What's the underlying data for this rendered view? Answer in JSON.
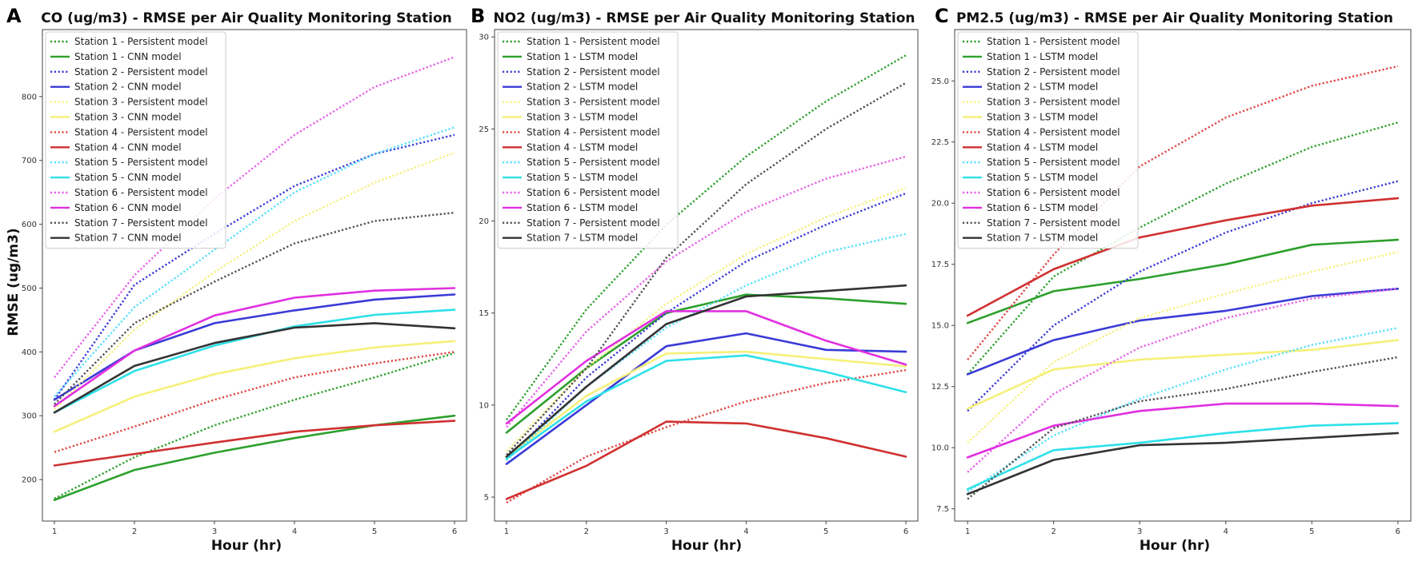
{
  "y_axis_label": "RMSE (ug/m3)",
  "chart_data": [
    {
      "panel": "A",
      "type": "line",
      "title": "CO (ug/m3) - RMSE per Air Quality Monitoring Station",
      "xlabel": "Hour (hr)",
      "ylabel": "RMSE (ug/m3)",
      "x": [
        1,
        2,
        3,
        4,
        5,
        6
      ],
      "xlim": [
        0.85,
        6.15
      ],
      "ylim": [
        135,
        905
      ],
      "yticks": [
        200,
        300,
        400,
        500,
        600,
        700,
        800
      ],
      "ytick_labels": [
        "200",
        "300",
        "400",
        "500",
        "600",
        "700",
        "800"
      ],
      "legend_position": "upper-left",
      "series": [
        {
          "name": "Station 1 - Persistent model",
          "color": "#2ca02c",
          "style": "dotted",
          "values": [
            170,
            235,
            285,
            325,
            360,
            398
          ]
        },
        {
          "name": "Station 1 - CNN model",
          "color": "#2ca02c",
          "style": "solid",
          "values": [
            168,
            215,
            242,
            265,
            285,
            300
          ]
        },
        {
          "name": "Station 2 - Persistent model",
          "color": "#3a3ad6",
          "style": "dotted",
          "values": [
            325,
            505,
            585,
            660,
            710,
            740
          ]
        },
        {
          "name": "Station 2 - CNN model",
          "color": "#3a3ad6",
          "style": "solid",
          "values": [
            325,
            402,
            445,
            465,
            482,
            490
          ]
        },
        {
          "name": "Station 3 - Persistent model",
          "color": "#f5f07a",
          "style": "dotted",
          "values": [
            310,
            435,
            525,
            605,
            665,
            712
          ]
        },
        {
          "name": "Station 3 - CNN model",
          "color": "#f5f07a",
          "style": "solid",
          "values": [
            275,
            330,
            365,
            390,
            407,
            417
          ]
        },
        {
          "name": "Station 4 - Persistent model",
          "color": "#e04545",
          "style": "dotted",
          "values": [
            243,
            283,
            325,
            360,
            382,
            400
          ]
        },
        {
          "name": "Station 4 - CNN model",
          "color": "#d03030",
          "style": "solid",
          "values": [
            222,
            240,
            258,
            275,
            285,
            292
          ]
        },
        {
          "name": "Station 5 - Persistent model",
          "color": "#55e0ff",
          "style": "dotted",
          "values": [
            330,
            470,
            560,
            650,
            710,
            752
          ]
        },
        {
          "name": "Station 5 - CNN model",
          "color": "#2ee0e8",
          "style": "solid",
          "values": [
            305,
            370,
            410,
            440,
            458,
            466
          ]
        },
        {
          "name": "Station 6 - Persistent model",
          "color": "#e860e8",
          "style": "dotted",
          "values": [
            360,
            520,
            640,
            740,
            815,
            862
          ]
        },
        {
          "name": "Station 6 - CNN model",
          "color": "#e030e0",
          "style": "solid",
          "values": [
            315,
            402,
            457,
            485,
            496,
            500
          ]
        },
        {
          "name": "Station 7 - Persistent model",
          "color": "#505050",
          "style": "dotted",
          "values": [
            318,
            445,
            510,
            570,
            605,
            618
          ]
        },
        {
          "name": "Station 7 - CNN model",
          "color": "#333333",
          "style": "solid",
          "values": [
            305,
            378,
            414,
            438,
            445,
            437
          ]
        }
      ]
    },
    {
      "panel": "B",
      "type": "line",
      "title": "NO2 (ug/m3) - RMSE per Air Quality Monitoring Station",
      "xlabel": "Hour (hr)",
      "ylabel": "RMSE (ug/m3)",
      "x": [
        1,
        2,
        3,
        4,
        5,
        6
      ],
      "xlim": [
        0.85,
        6.15
      ],
      "ylim": [
        3.7,
        30.4
      ],
      "yticks": [
        5,
        10,
        15,
        20,
        25,
        30
      ],
      "ytick_labels": [
        "5",
        "10",
        "15",
        "20",
        "25",
        "30"
      ],
      "legend_position": "upper-left",
      "series": [
        {
          "name": "Station 1 - Persistent model",
          "color": "#2ca02c",
          "style": "dotted",
          "values": [
            9.2,
            15.2,
            19.8,
            23.5,
            26.5,
            29.0
          ]
        },
        {
          "name": "Station 1 - LSTM model",
          "color": "#2ca02c",
          "style": "solid",
          "values": [
            8.5,
            12.0,
            15.0,
            16.0,
            15.8,
            15.5
          ]
        },
        {
          "name": "Station 2 - Persistent model",
          "color": "#3a3ad6",
          "style": "dotted",
          "values": [
            7.0,
            11.5,
            15.0,
            17.8,
            19.8,
            21.5
          ]
        },
        {
          "name": "Station 2 - LSTM model",
          "color": "#3a3ad6",
          "style": "solid",
          "values": [
            6.8,
            10.0,
            13.2,
            13.9,
            13.0,
            12.9
          ]
        },
        {
          "name": "Station 3 - Persistent model",
          "color": "#f5f07a",
          "style": "dotted",
          "values": [
            7.5,
            12.0,
            15.5,
            18.2,
            20.2,
            21.8
          ]
        },
        {
          "name": "Station 3 - LSTM model",
          "color": "#f5f07a",
          "style": "solid",
          "values": [
            7.2,
            10.5,
            12.8,
            12.9,
            12.5,
            12.1
          ]
        },
        {
          "name": "Station 4 - Persistent model",
          "color": "#e04545",
          "style": "dotted",
          "values": [
            4.7,
            7.2,
            8.8,
            10.2,
            11.2,
            11.9
          ]
        },
        {
          "name": "Station 4 - LSTM model",
          "color": "#d03030",
          "style": "solid",
          "values": [
            4.9,
            6.7,
            9.1,
            9.0,
            8.2,
            7.2
          ]
        },
        {
          "name": "Station 5 - Persistent model",
          "color": "#55e0ff",
          "style": "dotted",
          "values": [
            7.0,
            11.0,
            14.2,
            16.5,
            18.3,
            19.3
          ]
        },
        {
          "name": "Station 5 - LSTM model",
          "color": "#2ee0e8",
          "style": "solid",
          "values": [
            7.1,
            10.2,
            12.4,
            12.7,
            11.8,
            10.7
          ]
        },
        {
          "name": "Station 6 - Persistent model",
          "color": "#e860e8",
          "style": "dotted",
          "values": [
            8.8,
            14.0,
            17.8,
            20.5,
            22.3,
            23.5
          ]
        },
        {
          "name": "Station 6 - LSTM model",
          "color": "#e030e0",
          "style": "solid",
          "values": [
            9.0,
            12.4,
            15.1,
            15.1,
            13.5,
            12.2
          ]
        },
        {
          "name": "Station 7 - Persistent model",
          "color": "#505050",
          "style": "dotted",
          "values": [
            7.3,
            12.0,
            18.0,
            22.0,
            25.0,
            27.5
          ]
        },
        {
          "name": "Station 7 - LSTM model",
          "color": "#333333",
          "style": "solid",
          "values": [
            7.2,
            11.0,
            14.4,
            15.9,
            16.2,
            16.5
          ]
        }
      ]
    },
    {
      "panel": "C",
      "type": "line",
      "title": "PM2.5 (ug/m3) - RMSE per Air Quality Monitoring Station",
      "xlabel": "Hour (hr)",
      "ylabel": "RMSE (ug/m3)",
      "x": [
        1,
        2,
        3,
        4,
        5,
        6
      ],
      "xlim": [
        0.85,
        6.15
      ],
      "ylim": [
        7.0,
        27.1
      ],
      "yticks": [
        7.5,
        10.0,
        12.5,
        15.0,
        17.5,
        20.0,
        22.5,
        25.0
      ],
      "ytick_labels": [
        "7.5",
        "10.0",
        "12.5",
        "15.0",
        "17.5",
        "20.0",
        "22.5",
        "25.0"
      ],
      "legend_position": "upper-left",
      "series": [
        {
          "name": "Station 1 - Persistent model",
          "color": "#2ca02c",
          "style": "dotted",
          "values": [
            13.0,
            17.0,
            19.0,
            20.8,
            22.3,
            23.3
          ]
        },
        {
          "name": "Station 1 - LSTM model",
          "color": "#2ca02c",
          "style": "solid",
          "values": [
            15.1,
            16.4,
            16.9,
            17.5,
            18.3,
            18.5
          ]
        },
        {
          "name": "Station 2 - Persistent model",
          "color": "#3a3ad6",
          "style": "dotted",
          "values": [
            11.5,
            15.0,
            17.2,
            18.8,
            20.0,
            20.9
          ]
        },
        {
          "name": "Station 2 - LSTM model",
          "color": "#3a3ad6",
          "style": "solid",
          "values": [
            13.0,
            14.4,
            15.2,
            15.6,
            16.2,
            16.5
          ]
        },
        {
          "name": "Station 3 - Persistent model",
          "color": "#f5f07a",
          "style": "dotted",
          "values": [
            10.2,
            13.5,
            15.3,
            16.3,
            17.2,
            18.0
          ]
        },
        {
          "name": "Station 3 - LSTM model",
          "color": "#f5f07a",
          "style": "solid",
          "values": [
            11.6,
            13.2,
            13.6,
            13.8,
            14.0,
            14.4
          ]
        },
        {
          "name": "Station 4 - Persistent model",
          "color": "#e04545",
          "style": "dotted",
          "values": [
            13.6,
            17.9,
            21.5,
            23.5,
            24.8,
            25.6
          ]
        },
        {
          "name": "Station 4 - LSTM model",
          "color": "#d03030",
          "style": "solid",
          "values": [
            15.4,
            17.3,
            18.6,
            19.3,
            19.9,
            20.2
          ]
        },
        {
          "name": "Station 5 - Persistent model",
          "color": "#55e0ff",
          "style": "dotted",
          "values": [
            8.2,
            10.5,
            12.0,
            13.2,
            14.2,
            14.9
          ]
        },
        {
          "name": "Station 5 - LSTM model",
          "color": "#2ee0e8",
          "style": "solid",
          "values": [
            8.3,
            9.9,
            10.2,
            10.6,
            10.9,
            11.0
          ]
        },
        {
          "name": "Station 6 - Persistent model",
          "color": "#e860e8",
          "style": "dotted",
          "values": [
            9.0,
            12.2,
            14.1,
            15.3,
            16.1,
            16.5
          ]
        },
        {
          "name": "Station 6 - LSTM model",
          "color": "#e030e0",
          "style": "solid",
          "values": [
            9.6,
            10.9,
            11.5,
            11.8,
            11.8,
            11.7
          ]
        },
        {
          "name": "Station 7 - Persistent model",
          "color": "#505050",
          "style": "dotted",
          "values": [
            7.9,
            10.8,
            11.9,
            12.4,
            13.1,
            13.7
          ]
        },
        {
          "name": "Station 7 - LSTM model",
          "color": "#333333",
          "style": "solid",
          "values": [
            8.1,
            9.5,
            10.1,
            10.2,
            10.4,
            10.6
          ]
        }
      ]
    }
  ]
}
